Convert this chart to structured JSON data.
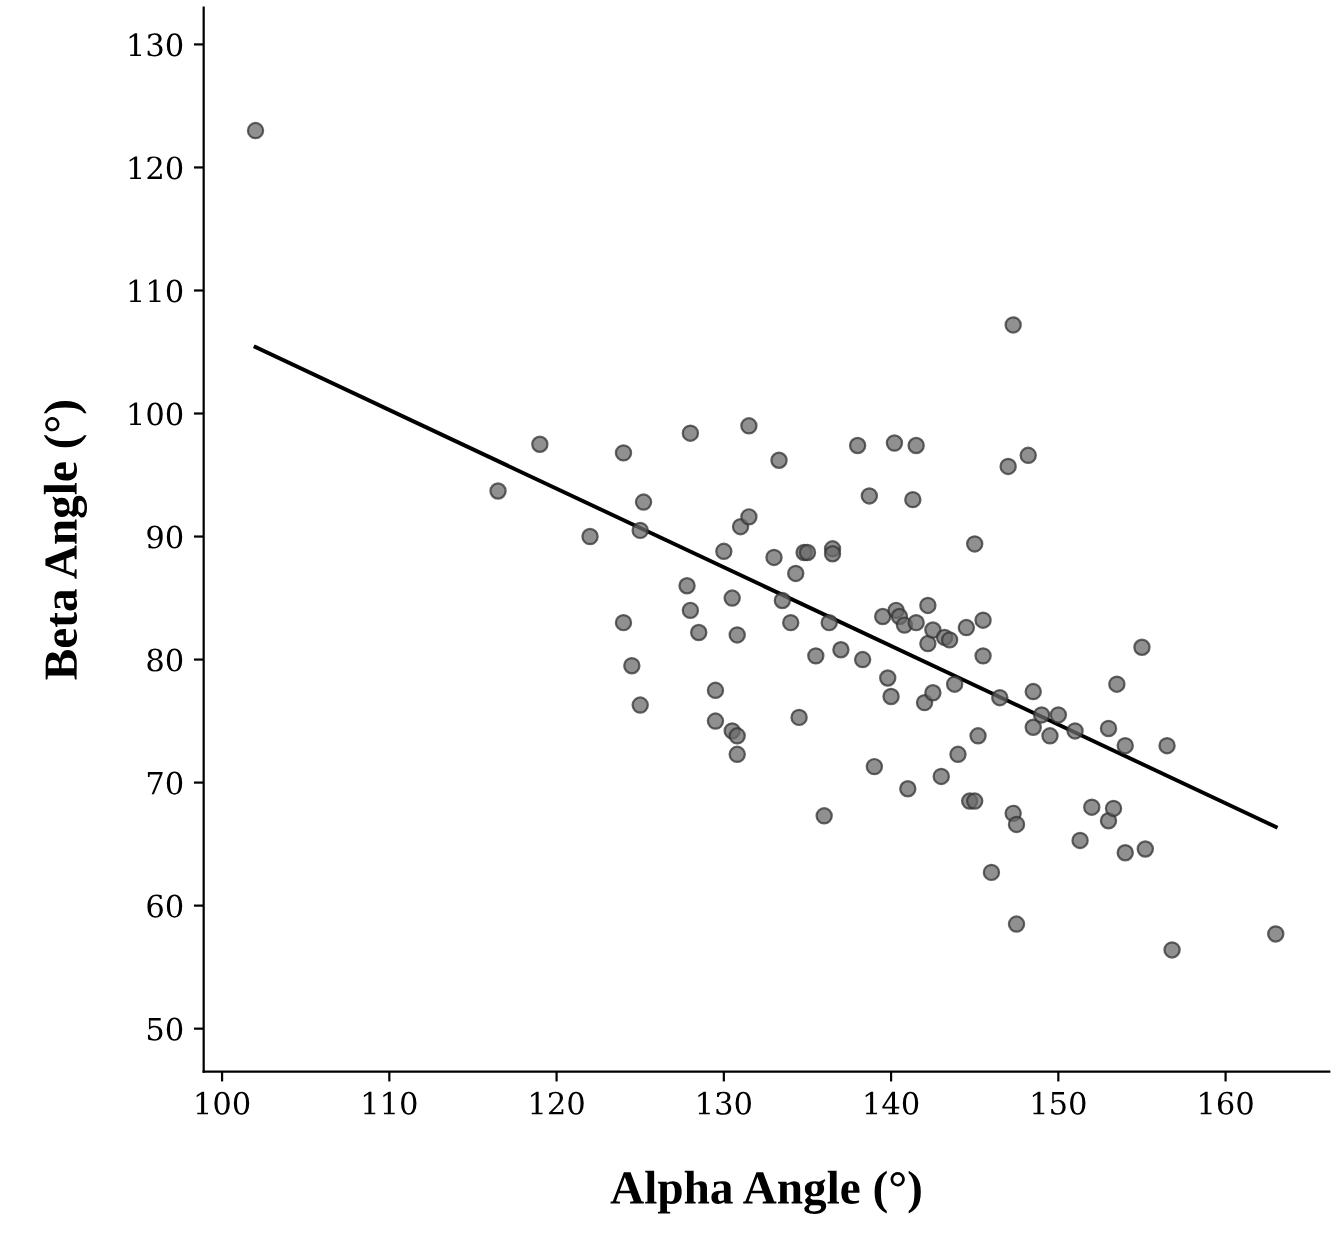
{
  "chart_data": {
    "type": "scatter",
    "xlabel": "Alpha Angle (°)",
    "ylabel": "Beta Angle (°)",
    "xlim": [
      98.9,
      166.2
    ],
    "ylim": [
      46.5,
      133
    ],
    "xticks": [
      100,
      110,
      120,
      130,
      140,
      150,
      160
    ],
    "yticks": [
      50,
      60,
      70,
      80,
      90,
      100,
      110,
      120,
      130
    ],
    "grid": false,
    "legend": false,
    "series": [
      {
        "marker": "circle",
        "color": "#6b6b6b",
        "x": [
          102,
          116.5,
          119,
          122,
          124,
          124,
          124.5,
          125,
          125.2,
          125,
          128,
          127.8,
          128,
          128.5,
          129.5,
          129.5,
          130,
          130.5,
          130.8,
          130.8,
          130.8,
          130.5,
          131,
          131.5,
          131.5,
          133,
          133.3,
          133.5,
          134,
          134.3,
          134.5,
          134.8,
          135,
          135.5,
          136,
          136.3,
          136.5,
          136.5,
          137,
          138,
          138.3,
          138.7,
          139,
          139.5,
          139.8,
          140,
          140.2,
          140.3,
          140.5,
          140.8,
          141,
          141.3,
          141.5,
          141.5,
          142,
          142.2,
          142.2,
          142.5,
          142.5,
          143,
          143.2,
          143.5,
          143.8,
          144,
          144.5,
          144.7,
          145,
          145,
          145.2,
          145.5,
          145.5,
          146,
          146.5,
          147,
          147.3,
          147.3,
          147.5,
          147.5,
          148.2,
          148.5,
          148.5,
          149,
          149.5,
          150,
          151,
          151.3,
          152,
          153,
          153,
          153.3,
          153.5,
          154,
          154,
          155,
          155.2,
          156.5,
          156.8,
          163
        ],
        "values": [
          123,
          93.7,
          97.5,
          90,
          96.8,
          83,
          79.5,
          76.3,
          92.8,
          90.5,
          98.4,
          86,
          84,
          82.2,
          77.5,
          75,
          88.8,
          74.2,
          73.8,
          72.3,
          82,
          85,
          90.8,
          91.6,
          99,
          88.3,
          96.2,
          84.8,
          83,
          87,
          75.3,
          88.7,
          88.7,
          80.3,
          67.3,
          83,
          89,
          88.6,
          80.8,
          97.4,
          80,
          93.3,
          71.3,
          83.5,
          78.5,
          77,
          97.6,
          84,
          83.5,
          82.8,
          69.5,
          93,
          97.4,
          83,
          76.5,
          81.3,
          84.4,
          82.4,
          77.3,
          70.5,
          81.8,
          81.6,
          78,
          72.3,
          82.6,
          68.5,
          89.4,
          68.5,
          73.8,
          83.2,
          80.3,
          62.7,
          76.9,
          95.7,
          107.2,
          67.5,
          66.6,
          58.5,
          96.6,
          77.4,
          74.5,
          75.5,
          73.8,
          75.5,
          74.2,
          65.3,
          68,
          74.4,
          66.9,
          67.9,
          78,
          64.3,
          73,
          81,
          64.6,
          73,
          56.4,
          57.7
        ]
      },
      {
        "type": "line",
        "color": "#000000",
        "x": [
          102,
          163
        ],
        "values": [
          105.4,
          66.4
        ]
      }
    ]
  }
}
